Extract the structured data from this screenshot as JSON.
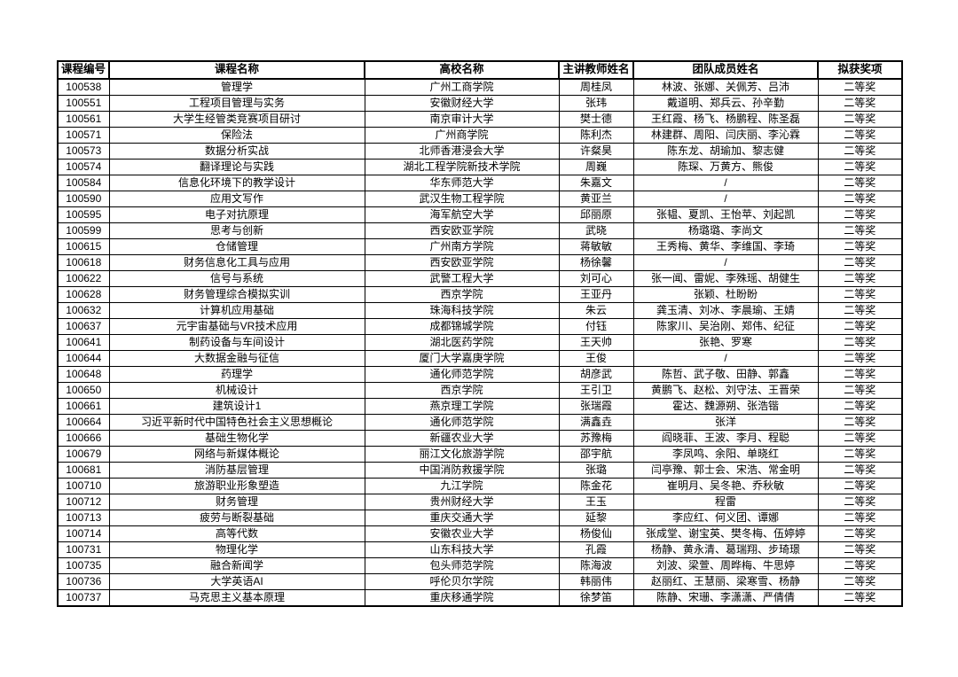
{
  "page": {
    "background_color": "#ffffff",
    "border_color": "#000000",
    "award_value": "二等奖"
  },
  "table": {
    "headers": [
      "课程编号",
      "课程名称",
      "高校名称",
      "主讲教师姓名",
      "团队成员姓名",
      "拟获奖项"
    ],
    "rows": [
      [
        "100538",
        "管理学",
        "广州工商学院",
        "周桂凤",
        "林波、张娜、关佩芳、吕沛",
        "二等奖"
      ],
      [
        "100551",
        "工程项目管理与实务",
        "安徽财经大学",
        "张玮",
        "戴道明、郑兵云、孙辛勤",
        "二等奖"
      ],
      [
        "100561",
        "大学生经管类竞赛项目研讨",
        "南京审计大学",
        "樊士德",
        "王红霞、杨飞、杨鹏程、陈圣磊",
        "二等奖"
      ],
      [
        "100571",
        "保险法",
        "广州商学院",
        "陈利杰",
        "林建群、周阳、闫庆丽、李沁霖",
        "二等奖"
      ],
      [
        "100573",
        "数据分析实战",
        "北师香港浸会大学",
        "许粲昊",
        "陈东龙、胡瑜加、黎志健",
        "二等奖"
      ],
      [
        "100574",
        "翻译理论与实践",
        "湖北工程学院新技术学院",
        "周巍",
        "陈琛、万黄方、熊俊",
        "二等奖"
      ],
      [
        "100584",
        "信息化环境下的教学设计",
        "华东师范大学",
        "朱嘉文",
        "/",
        "二等奖"
      ],
      [
        "100590",
        "应用文写作",
        "武汉生物工程学院",
        "黄亚兰",
        "/",
        "二等奖"
      ],
      [
        "100595",
        "电子对抗原理",
        "海军航空大学",
        "邱丽原",
        "张韫、夏凯、王怡苹、刘起凯",
        "二等奖"
      ],
      [
        "100599",
        "思考与创新",
        "西安欧亚学院",
        "武晓",
        "杨璐璐、李尚文",
        "二等奖"
      ],
      [
        "100615",
        "仓储管理",
        "广州南方学院",
        "蒋敏敏",
        "王秀梅、黄华、李维国、李琦",
        "二等奖"
      ],
      [
        "100618",
        "财务信息化工具与应用",
        "西安欧亚学院",
        "杨徐馨",
        "/",
        "二等奖"
      ],
      [
        "100622",
        "信号与系统",
        "武警工程大学",
        "刘可心",
        "张一闻、雷妮、李殊瑶、胡健生",
        "二等奖"
      ],
      [
        "100628",
        "财务管理综合模拟实训",
        "西京学院",
        "王亚丹",
        "张颖、杜盼盼",
        "二等奖"
      ],
      [
        "100632",
        "计算机应用基础",
        "珠海科技学院",
        "朱云",
        "龚玉清、刘冰、李晨瑜、王婧",
        "二等奖"
      ],
      [
        "100637",
        "元宇宙基础与VR技术应用",
        "成都锦城学院",
        "付钰",
        "陈家川、吴治刚、郑伟、纪征",
        "二等奖"
      ],
      [
        "100641",
        "制药设备与车间设计",
        "湖北医药学院",
        "王天帅",
        "张艳、罗寒",
        "二等奖"
      ],
      [
        "100644",
        "大数据金融与征信",
        "厦门大学嘉庚学院",
        "王俊",
        "/",
        "二等奖"
      ],
      [
        "100648",
        "药理学",
        "通化师范学院",
        "胡彦武",
        "陈哲、武子敬、田静、郭鑫",
        "二等奖"
      ],
      [
        "100650",
        "机械设计",
        "西京学院",
        "王引卫",
        "黄鹏飞、赵松、刘守法、王晋荣",
        "二等奖"
      ],
      [
        "100661",
        "建筑设计1",
        "燕京理工学院",
        "张瑞霞",
        "霍达、魏源朔、张浩锴",
        "二等奖"
      ],
      [
        "100664",
        "习近平新时代中国特色社会主义思想概论",
        "通化师范学院",
        "满鑫垚",
        "张洋",
        "二等奖"
      ],
      [
        "100666",
        "基础生物化学",
        "新疆农业大学",
        "苏豫梅",
        "阎晓菲、王波、李月、程聪",
        "二等奖"
      ],
      [
        "100679",
        "网络与新媒体概论",
        "丽江文化旅游学院",
        "邵宇航",
        "李凤鸣、余阳、单晓红",
        "二等奖"
      ],
      [
        "100681",
        "消防基层管理",
        "中国消防救援学院",
        "张璐",
        "闫亭豫、郭士会、宋浩、常金明",
        "二等奖"
      ],
      [
        "100710",
        "旅游职业形象塑造",
        "九江学院",
        "陈金花",
        "崔明月、吴冬艳、乔秋敏",
        "二等奖"
      ],
      [
        "100712",
        "财务管理",
        "贵州财经大学",
        "王玉",
        "程雷",
        "二等奖"
      ],
      [
        "100713",
        "疲劳与断裂基础",
        "重庆交通大学",
        "延黎",
        "李应红、何义团、谭娜",
        "二等奖"
      ],
      [
        "100714",
        "高等代数",
        "安徽农业大学",
        "杨俊仙",
        "张成堂、谢宝英、樊冬梅、伍婷婷",
        "二等奖"
      ],
      [
        "100731",
        "物理化学",
        "山东科技大学",
        "孔霞",
        "杨静、黄永清、葛瑞翔、步琦璟",
        "二等奖"
      ],
      [
        "100735",
        "融合新闻学",
        "包头师范学院",
        "陈海波",
        "刘波、梁萱、周晔梅、牛思婷",
        "二等奖"
      ],
      [
        "100736",
        "大学英语AI",
        "呼伦贝尔学院",
        "韩丽伟",
        "赵丽红、王慧丽、梁寒雪、杨静",
        "二等奖"
      ],
      [
        "100737",
        "马克思主义基本原理",
        "重庆移通学院",
        "徐梦笛",
        "陈静、宋珊、李潇潇、严倩倩",
        "二等奖"
      ]
    ]
  }
}
